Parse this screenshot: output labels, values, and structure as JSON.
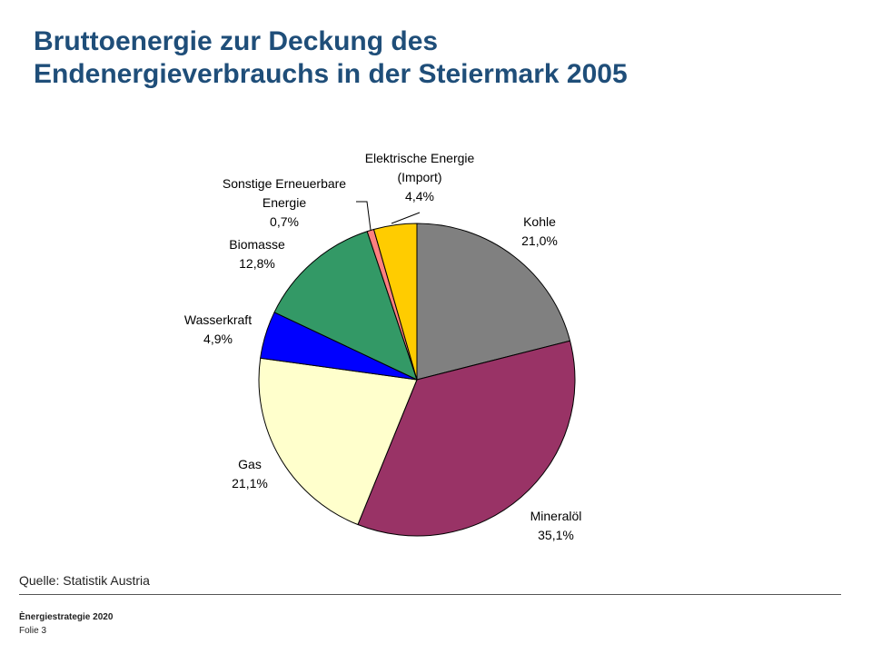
{
  "header": {
    "title_line1": "Bruttoenergie zur Deckung des",
    "title_line2": "Endenergieverbrauchs in der Steiermark 2005"
  },
  "chart_data": {
    "type": "pie",
    "start_angle_deg": 0,
    "direction": "clockwise",
    "slices": [
      {
        "label": "Kohle",
        "value": 21.0,
        "value_label": "21,0%",
        "color": "#808080"
      },
      {
        "label": "Mineralöl",
        "value": 35.1,
        "value_label": "35,1%",
        "color": "#993366"
      },
      {
        "label": "Gas",
        "value": 21.1,
        "value_label": "21,1%",
        "color": "#ffffcc"
      },
      {
        "label": "Wasserkraft",
        "value": 4.9,
        "value_label": "4,9%",
        "color": "#0000ff"
      },
      {
        "label": "Biomasse",
        "value": 12.8,
        "value_label": "12,8%",
        "color": "#339966"
      },
      {
        "label": "Sonstige Erneuerbare Energie",
        "value": 0.7,
        "value_label": "0,7%",
        "color": "#ff8080"
      },
      {
        "label": "Elektrische Energie (Import)",
        "value": 4.4,
        "value_label": "4,4%",
        "color": "#ffcc00"
      }
    ]
  },
  "source": "Quelle: Statistik Austria",
  "footer": {
    "title": "Ènergiestrategie 2020",
    "slide": "Folie 3"
  }
}
